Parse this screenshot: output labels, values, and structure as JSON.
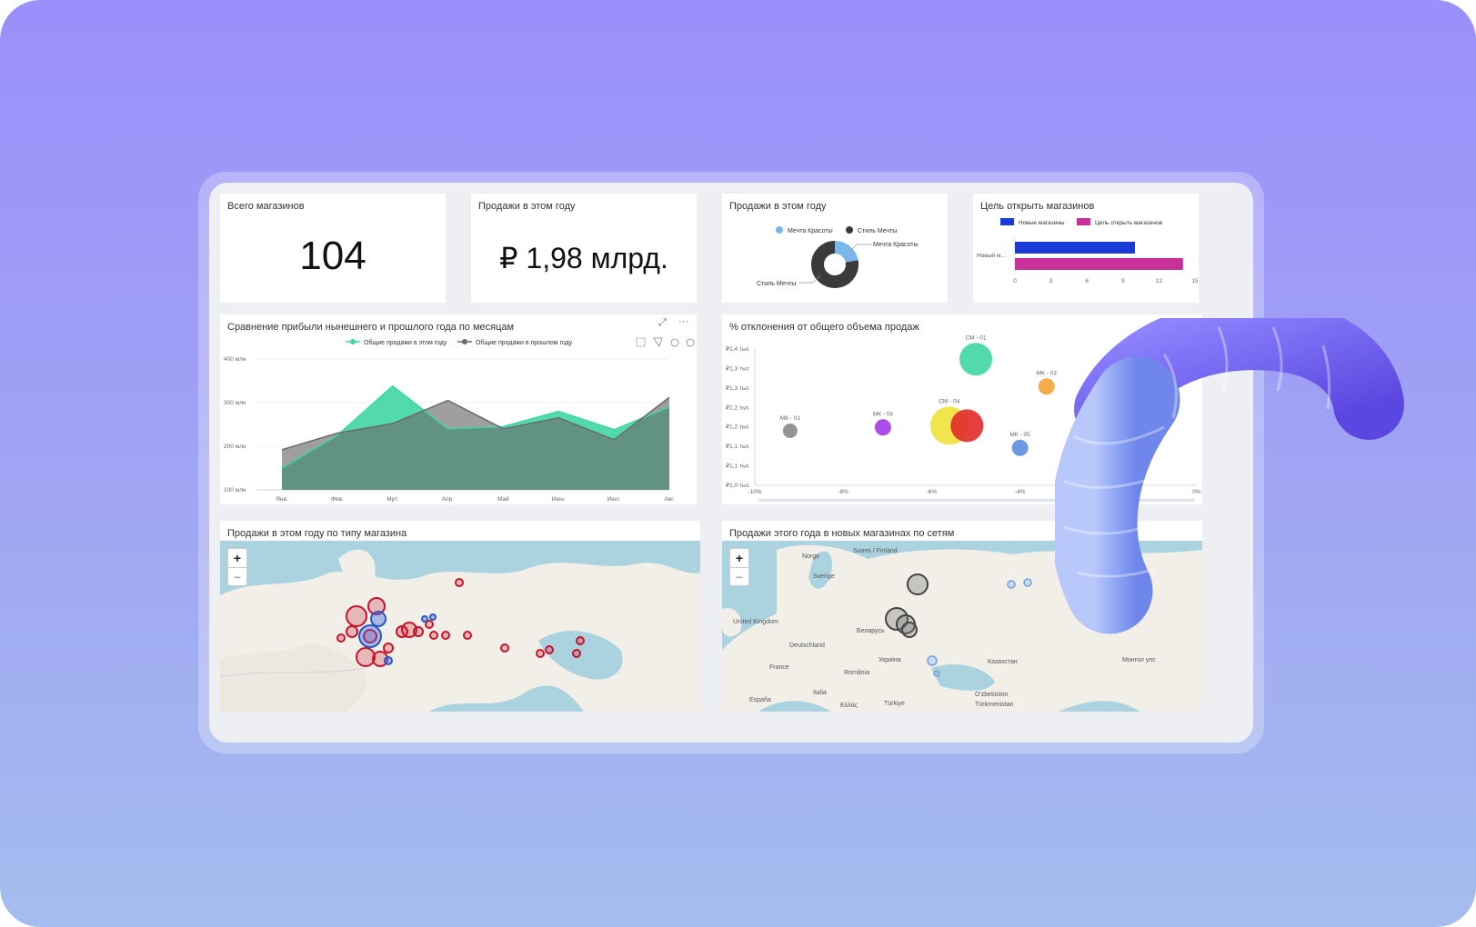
{
  "kpi1": {
    "title": "Всего магазинов",
    "value": "104"
  },
  "kpi2": {
    "title": "Продажи в этом году",
    "value": "₽ 1,98 млрд."
  },
  "donut": {
    "title": "Продажи в этом году",
    "legend": [
      "Мечта Красоты",
      "Стиль Мечты"
    ],
    "label_right": "Мечта Красоты",
    "label_left": "Стиль Мечты",
    "colors": [
      "#7ab7e8",
      "#3a3a3a"
    ]
  },
  "goal": {
    "title": "Цель открыть магазинов",
    "legend": [
      "Новые магазины",
      "Цель открыть магазинов"
    ],
    "category": "Новый м...",
    "ticks": [
      "0",
      "3",
      "6",
      "9",
      "12",
      "15"
    ],
    "colors": [
      "#1a3bd6",
      "#c8309a"
    ]
  },
  "area": {
    "title": "Сравнение прибыли нынешнего и прошлого года по месяцам",
    "legend": [
      "Общие продажи в этом году",
      "Общие продажи в прошлом году"
    ],
    "yticks": [
      "400 млн",
      "300 млн",
      "200 млн",
      "100 млн"
    ],
    "months": [
      "Янв.",
      "Фев.",
      "Мрт.",
      "Апр.",
      "Май",
      "Июн.",
      "Июл.",
      "Авг."
    ],
    "colors": [
      "#3fd6a4",
      "#6b6b6f"
    ]
  },
  "bubble": {
    "title": "% отклонения от общего объема продаж",
    "yticks": [
      "₽1,4 тыс",
      "₽1,3 тыс",
      "₽1,3 тыс",
      "₽1,2 тыс",
      "₽1,2 тыс",
      "₽1,1 тыс",
      "₽1,1 тыс",
      "₽1,0 тыс"
    ],
    "xticks": [
      "-10%",
      "-8%",
      "-6%",
      "-4%",
      "0%"
    ],
    "labels": [
      "СМ - 01",
      "МК - 03",
      "МК - 04",
      "СМ - 04",
      "МК - 01",
      "МК - 05"
    ]
  },
  "map1": {
    "title": "Продажи в этом году по типу магазина",
    "zoom_in": "+",
    "zoom_out": "−"
  },
  "map2": {
    "title": "Продажи этого года в новых магазинах по сетям",
    "zoom_in": "+",
    "zoom_out": "−",
    "places": [
      "Norge",
      "Suomi / Finland",
      "Sverige",
      "United Kingdom",
      "Беларусь",
      "Deutschland",
      "France",
      "Україна",
      "România",
      "Казахстан",
      "Монгол улс",
      "España",
      "Italia",
      "Türkiye",
      "O'zbekiston",
      "Türkmenistan",
      "Ελλάς"
    ]
  },
  "chart_data": [
    {
      "type": "pie",
      "title": "Продажи в этом году",
      "categories": [
        "Мечта Красоты",
        "Стиль Мечты"
      ],
      "values": [
        22,
        78
      ]
    },
    {
      "type": "bar",
      "title": "Цель открыть магазинов",
      "categories": [
        "Новый м..."
      ],
      "series": [
        {
          "name": "Новые магазины",
          "values": [
            10
          ]
        },
        {
          "name": "Цель открыть магазинов",
          "values": [
            14
          ]
        }
      ],
      "xlim": [
        0,
        15
      ]
    },
    {
      "type": "area",
      "title": "Сравнение прибыли нынешнего и прошлого года по месяцам",
      "categories": [
        "Янв.",
        "Фев.",
        "Мрт.",
        "Апр.",
        "Май",
        "Июн.",
        "Июл.",
        "Авг."
      ],
      "series": [
        {
          "name": "Общие продажи в этом году",
          "values": [
            150,
            225,
            338,
            240,
            245,
            280,
            238,
            290
          ]
        },
        {
          "name": "Общие продажи в прошлом году",
          "values": [
            192,
            230,
            252,
            305,
            240,
            265,
            215,
            312
          ]
        }
      ],
      "ylim": [
        100,
        400
      ]
    },
    {
      "type": "scatter",
      "title": "% отклонения от общего объема продаж",
      "xlim": [
        -10,
        0
      ],
      "ylim": [
        1000,
        1400
      ],
      "points": [
        {
          "label": "СМ - 01",
          "x": -5.0,
          "y": 1370,
          "size": 18,
          "color": "#3fd6a4"
        },
        {
          "label": "МК - 03",
          "x": -3.4,
          "y": 1290,
          "size": 9,
          "color": "#f5a23a"
        },
        {
          "label": "МК - 04",
          "x": -7.1,
          "y": 1170,
          "size": 9,
          "color": "#a23bea"
        },
        {
          "label": "СМ - 04",
          "x": -5.6,
          "y": 1175,
          "size": 21,
          "color": "#f0e23a"
        },
        {
          "label": "СМ - 04",
          "x": -5.2,
          "y": 1175,
          "size": 18,
          "color": "#e02a2a"
        },
        {
          "label": "МК - 01",
          "x": -9.2,
          "y": 1160,
          "size": 8,
          "color": "#8a8a8a"
        },
        {
          "label": "МК - 05",
          "x": -4.0,
          "y": 1110,
          "size": 9,
          "color": "#5b8fe0"
        }
      ]
    }
  ]
}
